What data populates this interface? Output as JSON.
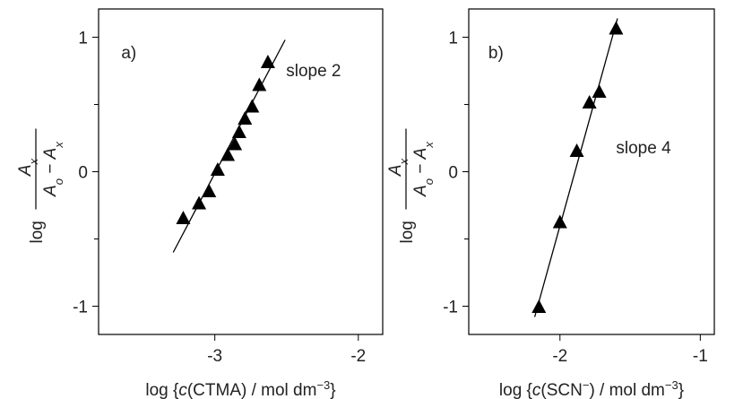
{
  "chart_data": [
    {
      "type": "scatter",
      "panel_label": "a)",
      "annotation": "slope 2",
      "x": [
        -3.22,
        -3.11,
        -3.04,
        -2.98,
        -2.91,
        -2.86,
        -2.83,
        -2.79,
        -2.74,
        -2.69,
        -2.63
      ],
      "values": [
        -0.35,
        -0.24,
        -0.15,
        0.01,
        0.12,
        0.2,
        0.29,
        0.39,
        0.48,
        0.64,
        0.81
      ],
      "fit_line": {
        "x": [
          -3.29,
          -2.51
        ],
        "y": [
          -0.6,
          0.98
        ]
      },
      "color": "#000000",
      "xlim": [
        -3.81,
        -1.83
      ],
      "ylim": [
        -1.21,
        1.21
      ],
      "xticks": [
        -3,
        -2
      ],
      "yticks": [
        1,
        0,
        -1
      ],
      "yminor_ticks": [
        0.5,
        -0.5
      ],
      "ylabel": {
        "log": "log",
        "num": [
          "A",
          "x"
        ],
        "den": [
          "A",
          "o",
          " − ",
          "A",
          "x"
        ]
      },
      "xlabel": [
        {
          "text": "log {",
          "style": "normal"
        },
        {
          "text": "c",
          "style": "italic"
        },
        {
          "text": "(CTMA) / mol dm",
          "style": "normal"
        },
        {
          "text": "−3",
          "style": "sup"
        },
        {
          "text": "}",
          "style": "normal"
        }
      ]
    },
    {
      "type": "scatter",
      "panel_label": "b)",
      "annotation": "slope 4",
      "x": [
        -2.15,
        -2.0,
        -1.88,
        -1.79,
        -1.72,
        -1.6
      ],
      "values": [
        -1.01,
        -0.38,
        0.15,
        0.51,
        0.59,
        1.06
      ],
      "fit_line": {
        "x": [
          -2.18,
          -1.59
        ],
        "y": [
          -1.08,
          1.14
        ]
      },
      "color": "#000000",
      "xlim": [
        -2.65,
        -0.9
      ],
      "ylim": [
        -1.21,
        1.21
      ],
      "xticks": [
        -2,
        -1
      ],
      "yticks": [
        1,
        0,
        -1
      ],
      "yminor_ticks": [
        0.5,
        -0.5
      ],
      "ylabel": {
        "log": "log",
        "num": [
          "A",
          "x"
        ],
        "den": [
          "A",
          "o",
          " − ",
          "A",
          "x"
        ]
      },
      "xlabel": [
        {
          "text": "log {",
          "style": "normal"
        },
        {
          "text": "c",
          "style": "italic"
        },
        {
          "text": "(SCN",
          "style": "normal"
        },
        {
          "text": "−",
          "style": "sup"
        },
        {
          "text": ") / mol dm",
          "style": "normal"
        },
        {
          "text": "−3",
          "style": "sup"
        },
        {
          "text": "}",
          "style": "normal"
        }
      ]
    }
  ]
}
